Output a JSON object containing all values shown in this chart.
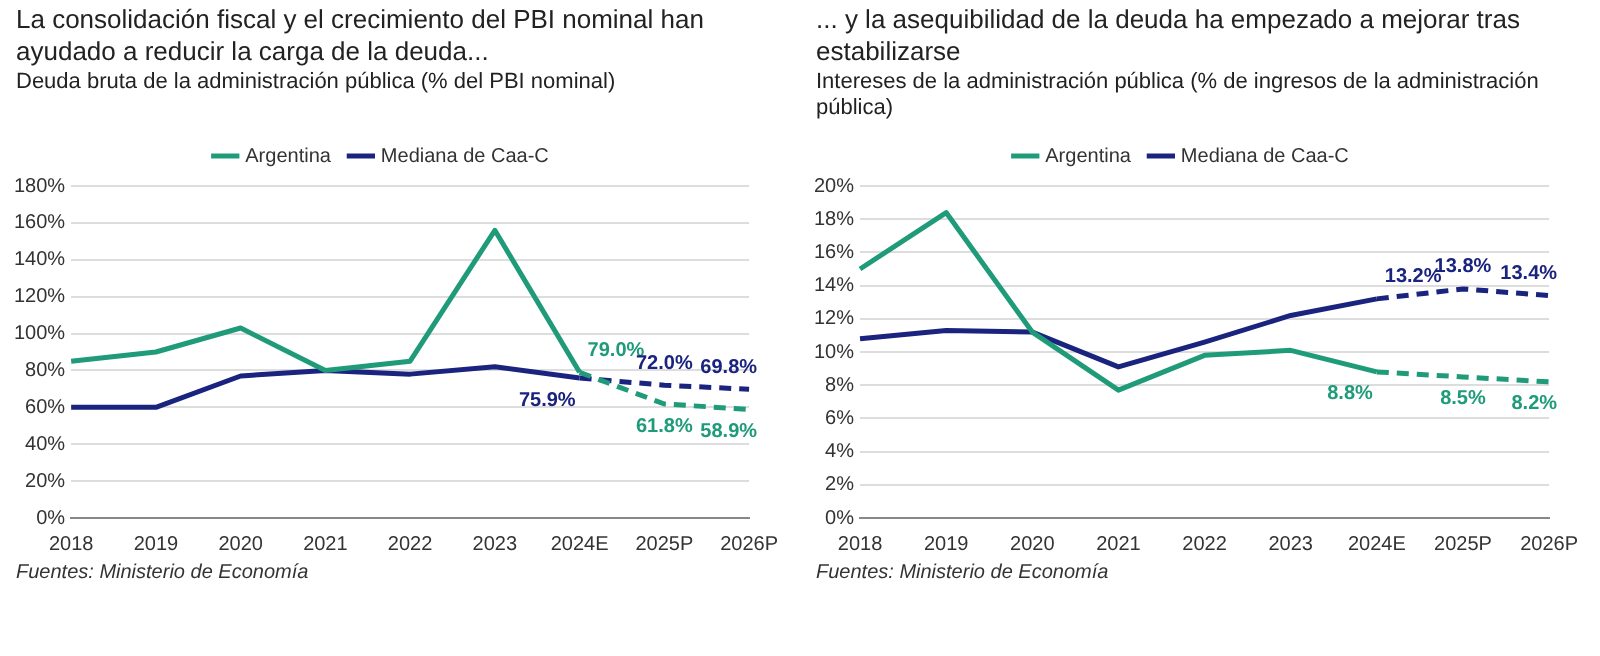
{
  "chart_data": [
    {
      "type": "line",
      "title": "La consolidación fiscal y el crecimiento del PBI nominal han ayudado a reducir la carga de la deuda...",
      "subtitle": "Deuda bruta de la administración pública (% del PBI nominal)",
      "categories": [
        "2018",
        "2019",
        "2020",
        "2021",
        "2022",
        "2023",
        "2024E",
        "2025P",
        "2026P"
      ],
      "series": [
        {
          "name": "Argentina",
          "color": "#1f9b7a",
          "line_style": "solid",
          "values": [
            85,
            90,
            103,
            80,
            85,
            156,
            79.0,
            null,
            null
          ]
        },
        {
          "name": "Mediana de Caa-C",
          "color": "#1a237e",
          "line_style": "solid",
          "values": [
            60,
            60,
            77,
            80,
            78,
            82,
            75.9,
            null,
            null
          ]
        },
        {
          "color": "#1f9b7a",
          "line_style": "dashed",
          "values": [
            null,
            null,
            null,
            null,
            null,
            null,
            79.0,
            61.8,
            58.9
          ],
          "value_labels": [
            null,
            null,
            null,
            null,
            null,
            null,
            "79.0%",
            "61.8%",
            "58.9%"
          ]
        },
        {
          "color": "#1a237e",
          "line_style": "dashed",
          "values": [
            null,
            null,
            null,
            null,
            null,
            null,
            75.9,
            72.0,
            69.8
          ],
          "value_labels": [
            null,
            null,
            null,
            null,
            null,
            null,
            "75.9%",
            "72.0%",
            "69.8%"
          ]
        }
      ],
      "ylim": [
        0,
        180
      ],
      "yticks": [
        {
          "value": 0,
          "label": "0%"
        },
        {
          "value": 20,
          "label": "20%"
        },
        {
          "value": 40,
          "label": "40%"
        },
        {
          "value": 60,
          "label": "60%"
        },
        {
          "value": 80,
          "label": "80%"
        },
        {
          "value": 100,
          "label": "100%"
        },
        {
          "value": 120,
          "label": "120%"
        },
        {
          "value": 140,
          "label": "140%"
        },
        {
          "value": 160,
          "label": "160%"
        },
        {
          "value": 180,
          "label": "180%"
        }
      ],
      "grid": "y",
      "legend": "top",
      "marker": "none",
      "annotations": [
        "Fuentes: Ministerio de Economía"
      ]
    },
    {
      "type": "line",
      "title": "... y la asequibilidad de la deuda ha empezado a mejorar tras estabilizarse",
      "subtitle": "Intereses de la administración pública (% de ingresos de la administración pública)",
      "categories": [
        "2018",
        "2019",
        "2020",
        "2021",
        "2022",
        "2023",
        "2024E",
        "2025P",
        "2026P"
      ],
      "series": [
        {
          "name": "Argentina",
          "color": "#1f9b7a",
          "line_style": "solid",
          "values": [
            15.0,
            18.4,
            11.2,
            7.7,
            9.8,
            10.1,
            8.8,
            null,
            null
          ]
        },
        {
          "name": "Mediana de Caa-C",
          "color": "#1a237e",
          "line_style": "solid",
          "values": [
            10.8,
            11.3,
            11.2,
            9.1,
            10.6,
            12.2,
            13.2,
            null,
            null
          ]
        },
        {
          "color": "#1f9b7a",
          "line_style": "dashed",
          "values": [
            null,
            null,
            null,
            null,
            null,
            null,
            8.8,
            8.5,
            8.2
          ],
          "value_labels": [
            null,
            null,
            null,
            null,
            null,
            null,
            "8.8%",
            "8.5%",
            "8.2%"
          ]
        },
        {
          "color": "#1a237e",
          "line_style": "dashed",
          "values": [
            null,
            null,
            null,
            null,
            null,
            null,
            13.2,
            13.8,
            13.4
          ],
          "value_labels": [
            null,
            null,
            null,
            null,
            null,
            null,
            "13.2%",
            "13.8%",
            "13.4%"
          ]
        }
      ],
      "ylim": [
        0,
        20
      ],
      "yticks": [
        {
          "value": 0,
          "label": "0%"
        },
        {
          "value": 2,
          "label": "2%"
        },
        {
          "value": 4,
          "label": "4%"
        },
        {
          "value": 6,
          "label": "6%"
        },
        {
          "value": 8,
          "label": "8%"
        },
        {
          "value": 10,
          "label": "10%"
        },
        {
          "value": 12,
          "label": "12%"
        },
        {
          "value": 14,
          "label": "14%"
        },
        {
          "value": 16,
          "label": "16%"
        },
        {
          "value": 18,
          "label": "18%"
        },
        {
          "value": 20,
          "label": "20%"
        }
      ],
      "grid": "y",
      "legend": "top",
      "marker": "none",
      "annotations": [
        "Fuentes: Ministerio de Economía"
      ]
    }
  ]
}
